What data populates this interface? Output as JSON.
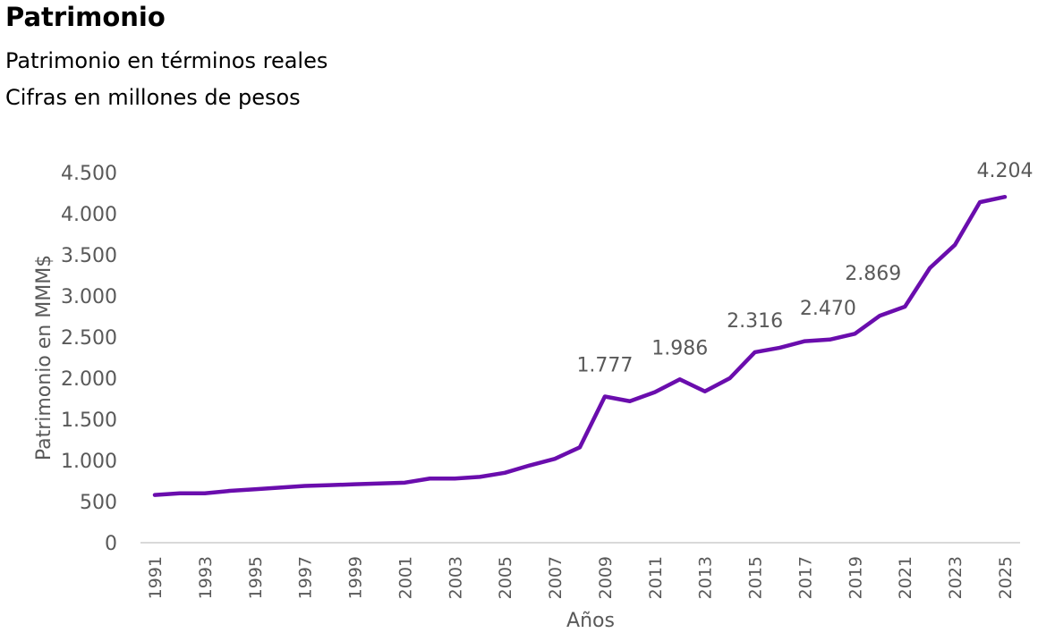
{
  "header": {
    "title": "Patrimonio",
    "subtitle1": "Patrimonio en términos reales",
    "subtitle2": "Cifras en millones de pesos"
  },
  "chart_data": {
    "type": "line",
    "title": "Patrimonio",
    "xlabel": "Años",
    "ylabel": "Patrimonio en MMM$",
    "ylim": [
      0,
      4500
    ],
    "yticks": [
      0,
      500,
      1000,
      1500,
      2000,
      2500,
      3000,
      3500,
      4000,
      4500
    ],
    "ytick_labels": [
      "0",
      "500",
      "1.000",
      "1.500",
      "2.000",
      "2.500",
      "3.000",
      "3.500",
      "4.000",
      "4.500"
    ],
    "xtick_labels": [
      "1991",
      "1993",
      "1995",
      "1997",
      "1999",
      "2001",
      "2003",
      "2005",
      "2007",
      "2009",
      "2011",
      "2013",
      "2015",
      "2017",
      "2019",
      "2021",
      "2023",
      "2025"
    ],
    "grid": false,
    "line_color": "#6a0dad",
    "x": [
      1991,
      1992,
      1993,
      1994,
      1995,
      1996,
      1997,
      1998,
      1999,
      2000,
      2001,
      2002,
      2003,
      2004,
      2005,
      2006,
      2007,
      2008,
      2009,
      2010,
      2011,
      2012,
      2013,
      2014,
      2015,
      2016,
      2017,
      2018,
      2019,
      2020,
      2021,
      2022,
      2023,
      2024,
      2025
    ],
    "values": [
      580,
      600,
      600,
      630,
      650,
      670,
      690,
      700,
      710,
      720,
      730,
      780,
      780,
      800,
      850,
      940,
      1020,
      1160,
      1777,
      1720,
      1830,
      1986,
      1840,
      2000,
      2316,
      2370,
      2450,
      2470,
      2540,
      2760,
      2869,
      3340,
      3620,
      4140,
      4204
    ],
    "data_labels": [
      {
        "x": 2009,
        "text": "1.777"
      },
      {
        "x": 2012,
        "text": "1.986"
      },
      {
        "x": 2015,
        "text": "2.316"
      },
      {
        "x": 2018,
        "text": "2.470"
      },
      {
        "x": 2021,
        "text": "2.869"
      },
      {
        "x": 2025,
        "text": "4.204"
      }
    ]
  }
}
